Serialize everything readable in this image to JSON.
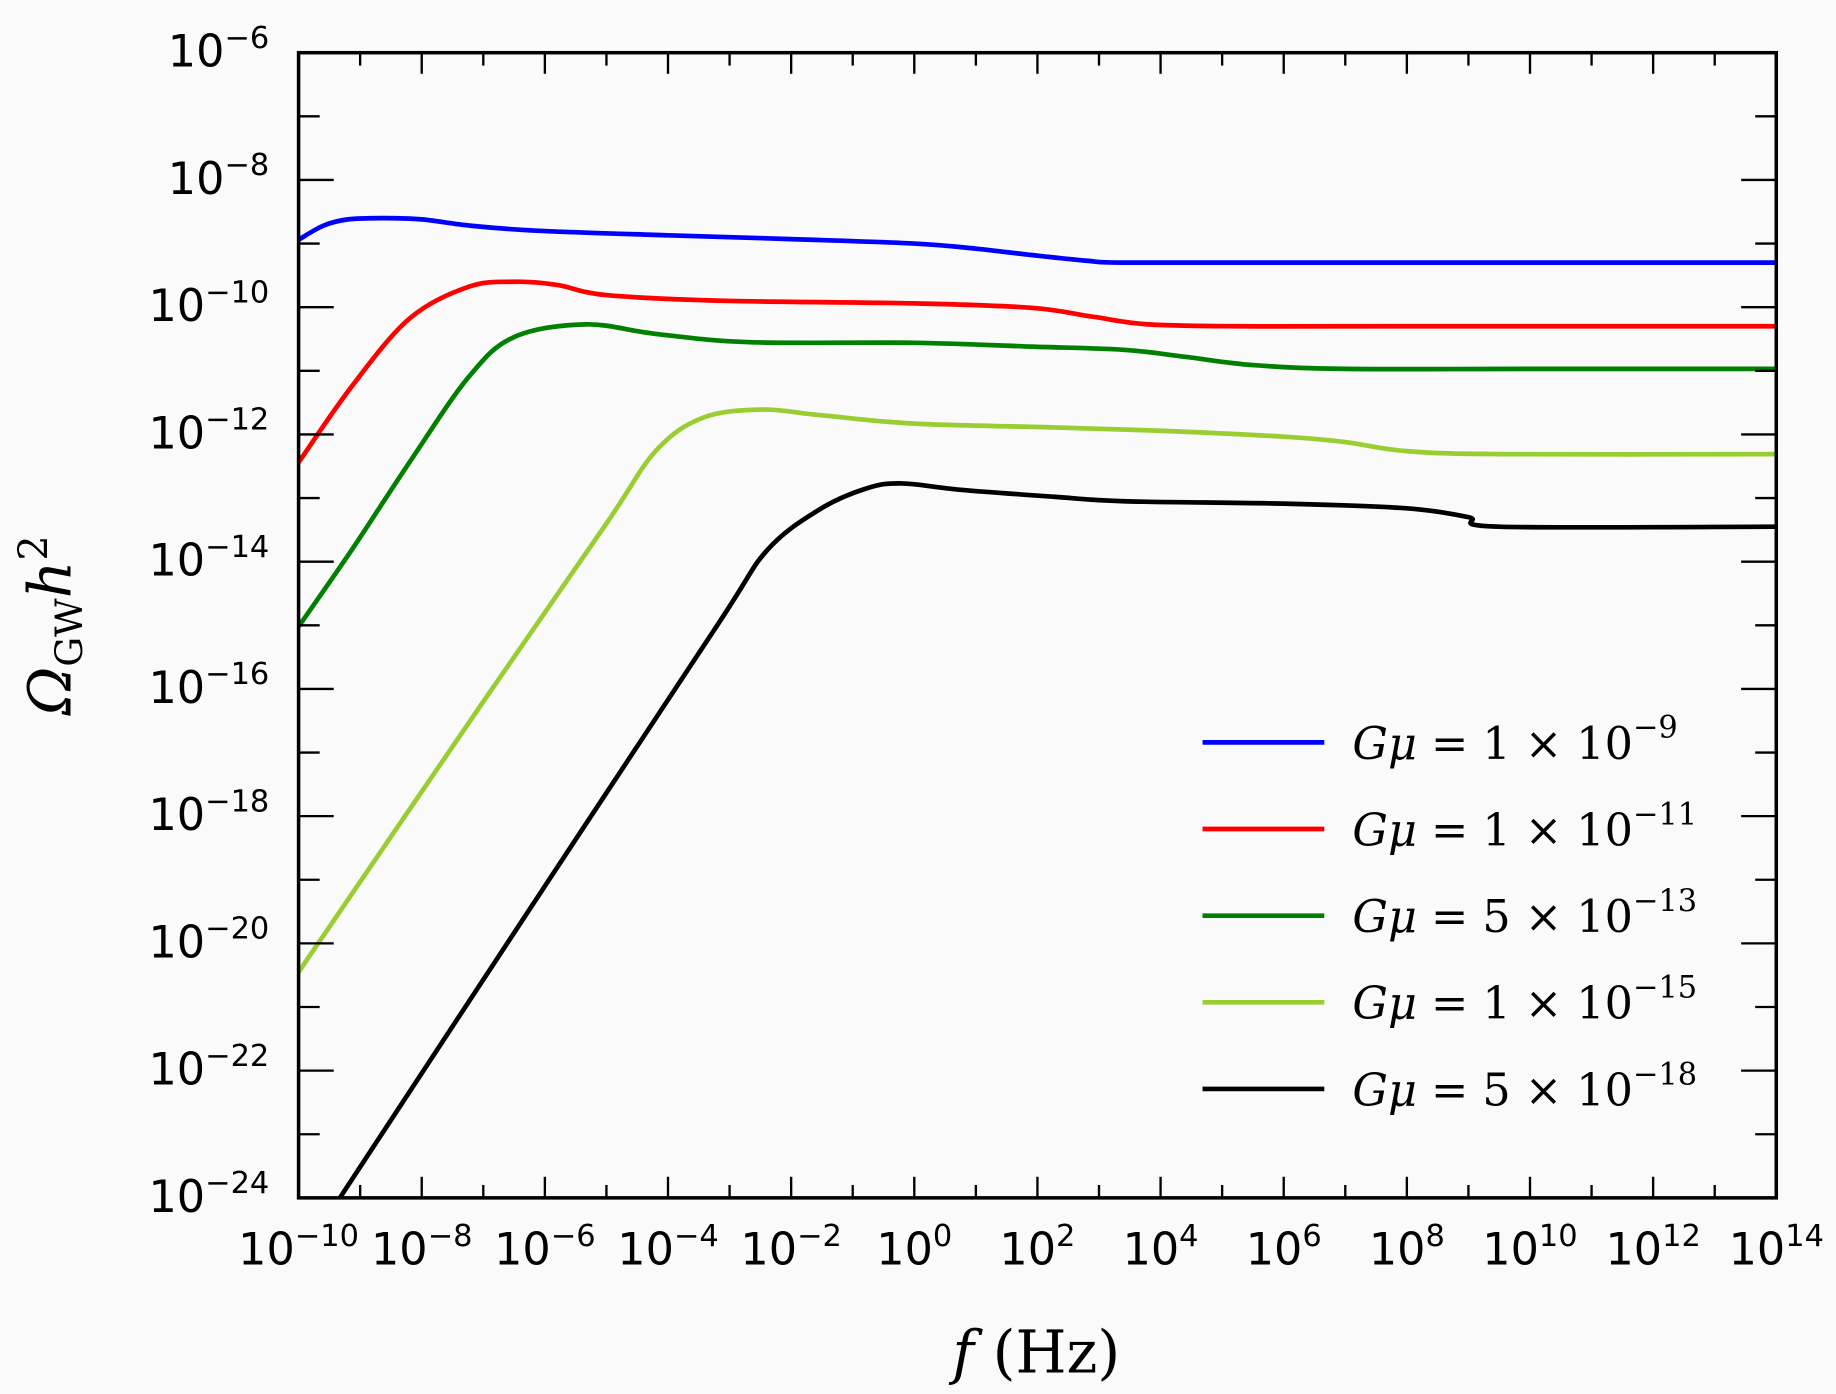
{
  "chart_data": {
    "type": "line",
    "title": "",
    "xlabel": "f (Hz)",
    "ylabel": "Ω_GW h^2",
    "xscale": "log",
    "yscale": "log",
    "xlim": [
      1e-10,
      100000000000000.0
    ],
    "ylim": [
      1e-24,
      1e-06
    ],
    "grid": false,
    "legend_position": "lower-right",
    "x_tick_labels": [
      {
        "base": "10",
        "exp": "−10",
        "log": -10
      },
      {
        "base": "10",
        "exp": "−8",
        "log": -8
      },
      {
        "base": "10",
        "exp": "−6",
        "log": -6
      },
      {
        "base": "10",
        "exp": "−4",
        "log": -4
      },
      {
        "base": "10",
        "exp": "−2",
        "log": -2
      },
      {
        "base": "10",
        "exp": "0",
        "log": 0
      },
      {
        "base": "10",
        "exp": "2",
        "log": 2
      },
      {
        "base": "10",
        "exp": "4",
        "log": 4
      },
      {
        "base": "10",
        "exp": "6",
        "log": 6
      },
      {
        "base": "10",
        "exp": "8",
        "log": 8
      },
      {
        "base": "10",
        "exp": "10",
        "log": 10
      },
      {
        "base": "10",
        "exp": "12",
        "log": 12
      },
      {
        "base": "10",
        "exp": "14",
        "log": 14
      }
    ],
    "y_tick_labels": [
      {
        "base": "10",
        "exp": "−6",
        "log": -6
      },
      {
        "base": "10",
        "exp": "−8",
        "log": -8
      },
      {
        "base": "10",
        "exp": "−10",
        "log": -10
      },
      {
        "base": "10",
        "exp": "−12",
        "log": -12
      },
      {
        "base": "10",
        "exp": "−14",
        "log": -14
      },
      {
        "base": "10",
        "exp": "−16",
        "log": -16
      },
      {
        "base": "10",
        "exp": "−18",
        "log": -18
      },
      {
        "base": "10",
        "exp": "−20",
        "log": -20
      },
      {
        "base": "10",
        "exp": "−22",
        "log": -22
      },
      {
        "base": "10",
        "exp": "−24",
        "log": -24
      }
    ],
    "series": [
      {
        "name": "Gμ = 1 × 10^−9",
        "label_main": "Gμ = 1 × 10",
        "label_exp": "−9",
        "color": "#0000ff",
        "log10_f": [
          -10,
          -9.6,
          -9.2,
          -8.6,
          -8,
          -7.2,
          -6.1,
          -4,
          -2,
          0,
          1,
          1.9,
          2.8,
          3.4,
          6,
          10,
          14
        ],
        "log10_omega": [
          -8.94,
          -8.72,
          -8.62,
          -8.6,
          -8.62,
          -8.72,
          -8.8,
          -8.87,
          -8.93,
          -9.0,
          -9.08,
          -9.18,
          -9.27,
          -9.3,
          -9.3,
          -9.3,
          -9.3
        ]
      },
      {
        "name": "Gμ = 1 × 10^−11",
        "label_main": "Gμ = 1 × 10",
        "label_exp": "−11",
        "color": "#ff0000",
        "log10_f": [
          -10,
          -9.14,
          -8.2,
          -7.24,
          -6.5,
          -5.8,
          -5,
          -3.06,
          0,
          1.9,
          2.9,
          3.8,
          5.3,
          8,
          14
        ],
        "log10_omega": [
          -12.44,
          -11.25,
          -10.18,
          -9.68,
          -9.6,
          -9.65,
          -9.81,
          -9.9,
          -9.94,
          -10.01,
          -10.15,
          -10.27,
          -10.3,
          -10.3,
          -10.3
        ]
      },
      {
        "name": "Gμ = 5 × 10^−13",
        "label_main": "Gμ = 5 × 10",
        "label_exp": "−13",
        "color": "#008000",
        "log10_f": [
          -10,
          -9.14,
          -8.2,
          -7.24,
          -6.5,
          -5.34,
          -4.2,
          -2.68,
          0,
          1.9,
          3.4,
          4.4,
          5.5,
          7,
          10,
          14
        ],
        "log10_omega": [
          -15.02,
          -13.82,
          -12.44,
          -11.1,
          -10.47,
          -10.27,
          -10.42,
          -10.55,
          -10.56,
          -10.62,
          -10.67,
          -10.78,
          -10.91,
          -10.97,
          -10.97,
          -10.97
        ]
      },
      {
        "name": "Gμ = 1 × 10^−15",
        "label_main": "Gμ = 1 × 10",
        "label_exp": "−15",
        "color": "#9acd32",
        "log10_f": [
          -10,
          -7,
          -5,
          -4.2,
          -3.44,
          -2.49,
          -1.5,
          0,
          2.27,
          4.2,
          6.07,
          7.0,
          7.97,
          9.5,
          14
        ],
        "log10_omega": [
          -20.45,
          -16.2,
          -13.4,
          -12.26,
          -11.74,
          -11.61,
          -11.7,
          -11.83,
          -11.89,
          -11.95,
          -12.04,
          -12.12,
          -12.26,
          -12.31,
          -12.31
        ]
      },
      {
        "name": "Gμ = 5 × 10^−18",
        "label_main": "Gμ = 5 × 10",
        "label_exp": "−18",
        "color": "#000000",
        "log10_f": [
          -9.33,
          -6,
          -3.2,
          -2.39,
          -1.54,
          -0.78,
          -0.2,
          0.75,
          2.27,
          3.4,
          6.07,
          7.97,
          9.0,
          9.5,
          14
        ],
        "log10_omega": [
          -24,
          -19.1,
          -15.0,
          -13.82,
          -13.18,
          -12.85,
          -12.77,
          -12.87,
          -12.98,
          -13.05,
          -13.09,
          -13.16,
          -13.3,
          -13.45,
          -13.45
        ]
      }
    ]
  }
}
